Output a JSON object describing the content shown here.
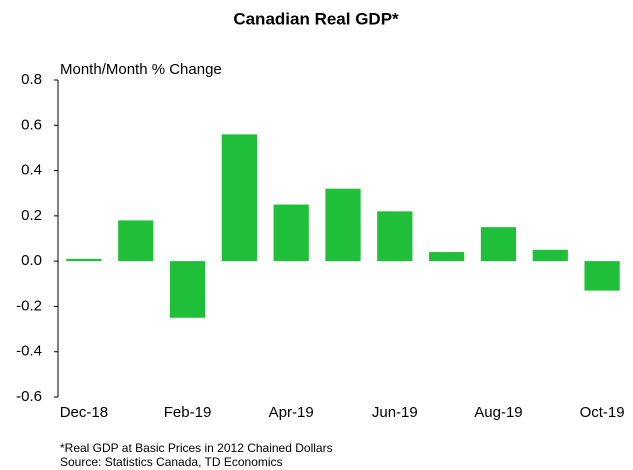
{
  "chart_data": {
    "type": "bar",
    "title": "Canadian Real GDP*",
    "y_axis_label": "Month/Month % Change",
    "categories": [
      "Dec-18",
      null,
      "Feb-19",
      null,
      "Apr-19",
      null,
      "Jun-19",
      null,
      "Aug-19",
      null,
      "Oct-19"
    ],
    "values": [
      0.01,
      0.18,
      -0.25,
      0.56,
      0.25,
      0.32,
      0.22,
      0.04,
      0.15,
      0.05,
      -0.13
    ],
    "color": "#1fbf3a",
    "ylim": [
      -0.6,
      0.8
    ],
    "yticks": [
      -0.6,
      -0.4,
      -0.2,
      {
        "value": 0,
        "label": "0.0"
      },
      0.2,
      0.4,
      0.6,
      0.8
    ],
    "grid": false,
    "footnotes": [
      "*Real GDP at Basic Prices in 2012 Chained Dollars",
      "Source: Statistics Canada, TD Economics"
    ]
  }
}
